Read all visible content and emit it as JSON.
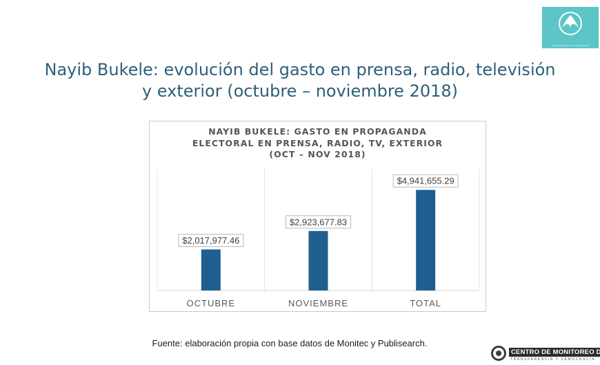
{
  "header": {
    "title_line1": "Nayib Bukele: evolución del gasto en prensa, radio, televisión",
    "title_line2": "y exterior (octubre – noviembre 2018)",
    "logo_caption": "Somos Alianza por la Unidad Nacional"
  },
  "chart_data": {
    "type": "bar",
    "title_lines": [
      "NAYIB BUKELE: GASTO EN PROPAGANDA",
      "ELECTORAL EN PRENSA, RADIO, TV, EXTERIOR",
      "(OCT – NOV 2018)"
    ],
    "categories": [
      "OCTUBRE",
      "NOVIEMBRE",
      "TOTAL"
    ],
    "values": [
      2017977.46,
      2923677.83,
      4941655.29
    ],
    "data_labels": [
      "$2,017,977.46",
      "$2,923,677.83",
      "$4,941,655.29"
    ],
    "ylim": [
      0,
      6000000
    ],
    "xlabel": "",
    "ylabel": "",
    "bar_color": "#1f5f8f",
    "grid": true
  },
  "footer": {
    "source": "Fuente: elaboración propia con base datos de Monitec y Publisearch.",
    "org_name": "CENTRO DE MONITOREO DE",
    "org_tagline": "TRANSPARENCIA Y DEMOCRACIA"
  },
  "colors": {
    "title": "#2d5f7a",
    "accent": "#5bc5c8",
    "bar": "#1f5f8f"
  }
}
